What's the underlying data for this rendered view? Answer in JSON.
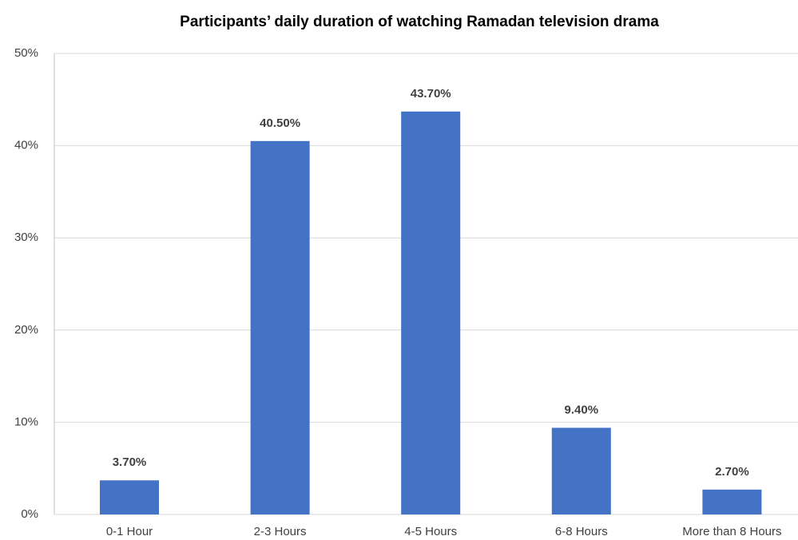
{
  "chart_data": {
    "type": "bar",
    "title": "Participants’ daily duration of watching Ramadan television drama",
    "categories": [
      "0-1 Hour",
      "2-3 Hours",
      "4-5 Hours",
      "6-8 Hours",
      "More than 8 Hours"
    ],
    "values": [
      3.7,
      40.5,
      43.7,
      9.4,
      2.7
    ],
    "value_labels": [
      "3.70%",
      "40.50%",
      "43.70%",
      "9.40%",
      "2.70%"
    ],
    "color": "#4472c4",
    "ylim": [
      0,
      50
    ],
    "yticks": [
      {
        "value": 0,
        "label": "0%"
      },
      {
        "value": 10,
        "label": "10%"
      },
      {
        "value": 20,
        "label": "20%"
      },
      {
        "value": 30,
        "label": "30%"
      },
      {
        "value": 40,
        "label": "40%"
      },
      {
        "value": 50,
        "label": "50%"
      }
    ],
    "grid": true
  }
}
